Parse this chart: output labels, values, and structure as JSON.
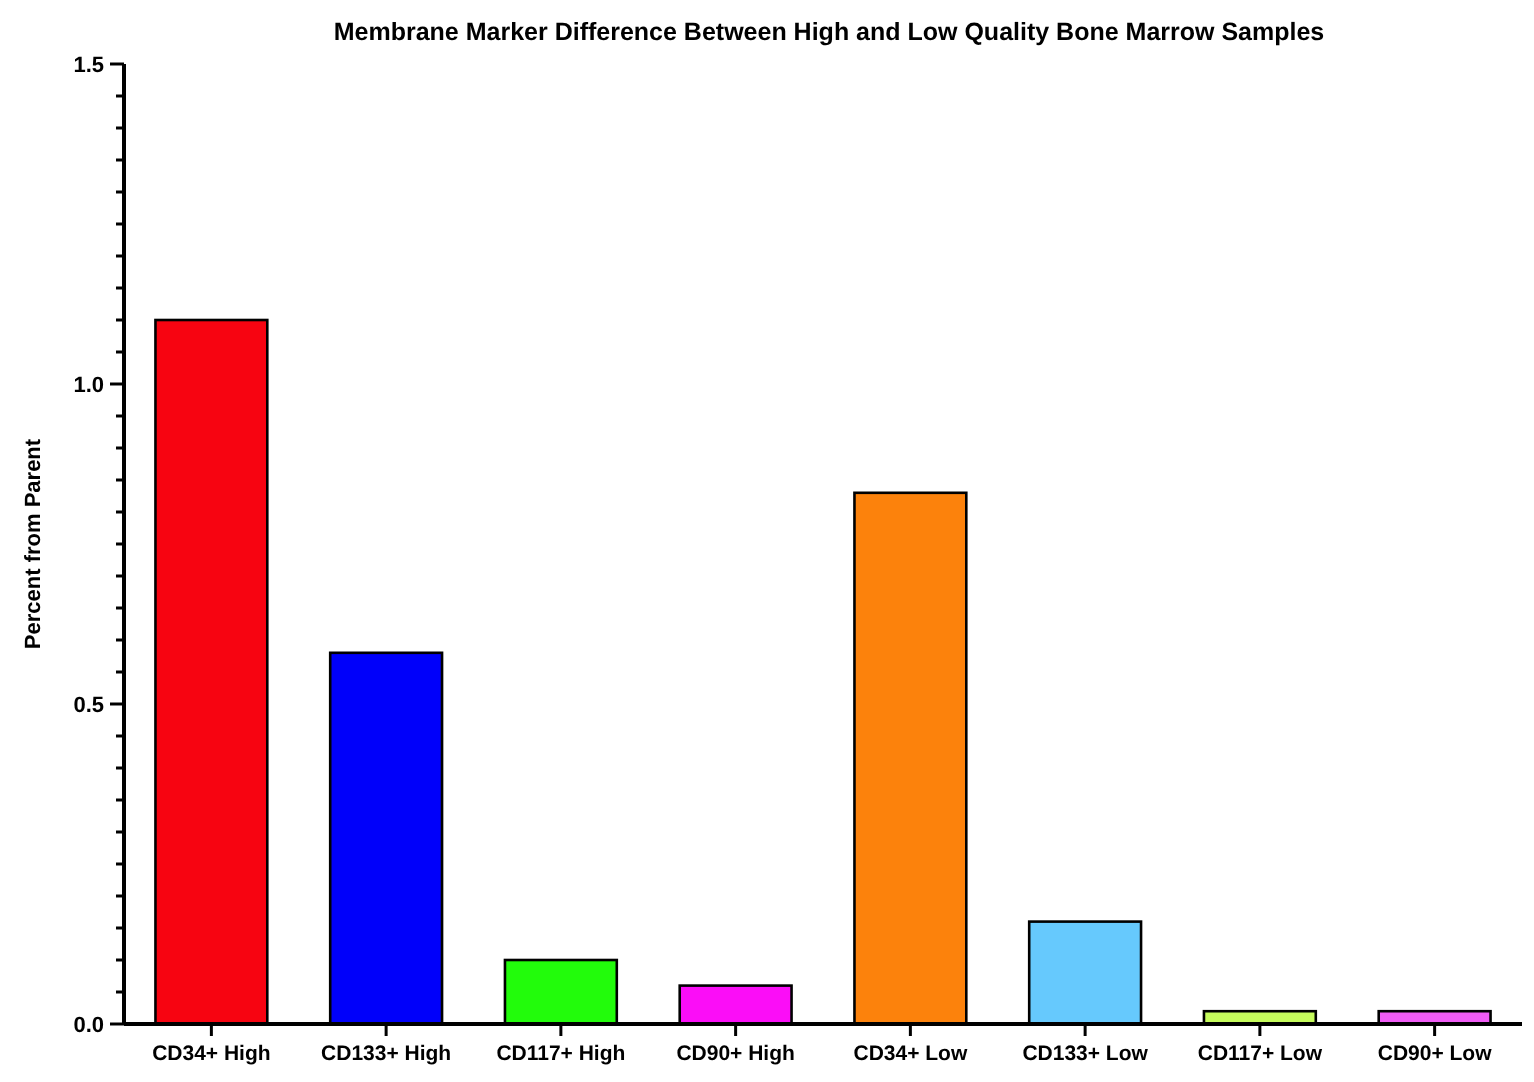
{
  "chart_data": {
    "type": "bar",
    "title": "Membrane Marker Difference Between High and Low Quality Bone Marrow Samples",
    "ylabel": "Percent from Parent",
    "categories": [
      "CD34+ High",
      "CD133+ High",
      "CD117+ High",
      "CD90+ High",
      "CD34+ Low",
      "CD133+ Low",
      "CD117+ Low",
      "CD90+ Low"
    ],
    "values": [
      1.1,
      0.58,
      0.1,
      0.06,
      0.83,
      0.16,
      0.02,
      0.02
    ],
    "colors": [
      "#f70411",
      "#0000fa",
      "#22fc0b",
      "#fb0df7",
      "#fc820c",
      "#66c9fd",
      "#c5fb5c",
      "#f05cf5"
    ],
    "ylim": [
      0,
      1.5
    ],
    "yticks": [
      {
        "value": 0,
        "label": "0.0"
      },
      {
        "value": 0.05,
        "label": null
      },
      {
        "value": 0.1,
        "label": null
      },
      {
        "value": 0.15,
        "label": null
      },
      {
        "value": 0.2,
        "label": null
      },
      {
        "value": 0.25,
        "label": null
      },
      {
        "value": 0.3,
        "label": null
      },
      {
        "value": 0.35,
        "label": null
      },
      {
        "value": 0.4,
        "label": null
      },
      {
        "value": 0.45,
        "label": null
      },
      {
        "value": 0.5,
        "label": "0.5"
      },
      {
        "value": 0.55,
        "label": null
      },
      {
        "value": 0.6,
        "label": null
      },
      {
        "value": 0.65,
        "label": null
      },
      {
        "value": 0.7,
        "label": null
      },
      {
        "value": 0.75,
        "label": null
      },
      {
        "value": 0.8,
        "label": null
      },
      {
        "value": 0.85,
        "label": null
      },
      {
        "value": 0.9,
        "label": null
      },
      {
        "value": 0.95,
        "label": null
      },
      {
        "value": 1,
        "label": "1.0"
      },
      {
        "value": 1.05,
        "label": null
      },
      {
        "value": 1.1,
        "label": null
      },
      {
        "value": 1.15,
        "label": null
      },
      {
        "value": 1.2,
        "label": null
      },
      {
        "value": 1.25,
        "label": null
      },
      {
        "value": 1.3,
        "label": null
      },
      {
        "value": 1.35,
        "label": null
      },
      {
        "value": 1.4,
        "label": null
      },
      {
        "value": 1.45,
        "label": null
      },
      {
        "value": 1.5,
        "label": "1.5"
      }
    ],
    "grid": false
  }
}
